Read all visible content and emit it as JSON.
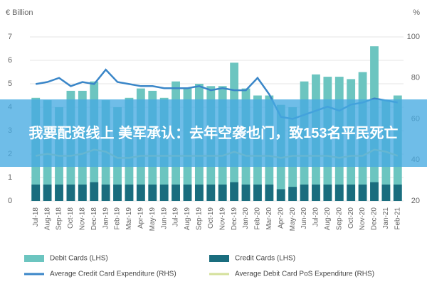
{
  "chart_data": {
    "type": "bar_line",
    "ylabel": "€ Billion",
    "y2label": "%",
    "categories": [
      "Jul-18",
      "Aug-18",
      "Sep-18",
      "Oct-18",
      "Nov-18",
      "Dec-18",
      "Jan-19",
      "Feb-19",
      "Mar-19",
      "Apr-19",
      "May-19",
      "Jun-19",
      "Jul-19",
      "Aug-19",
      "Sep-19",
      "Oct-19",
      "Nov-19",
      "Dec-19",
      "Jan-20",
      "Feb-20",
      "Mar-20",
      "Apr-20",
      "May-20",
      "Jun-20",
      "Jul-20",
      "Aug-20",
      "Sep-20",
      "Oct-20",
      "Nov-20",
      "Dec-20",
      "Jan-21",
      "Feb-21"
    ],
    "series": [
      {
        "name": "Debit Cards (LHS)",
        "kind": "bar",
        "color": "#6cc5c0",
        "values": [
          4.4,
          4.3,
          4.0,
          4.7,
          4.7,
          5.1,
          4.3,
          4.0,
          4.4,
          4.8,
          4.7,
          4.4,
          5.1,
          4.8,
          5.0,
          4.9,
          4.9,
          5.9,
          4.8,
          4.5,
          4.5,
          4.1,
          4.0,
          5.1,
          5.4,
          5.3,
          5.3,
          5.2,
          5.5,
          6.6,
          4.3,
          4.5
        ]
      },
      {
        "name": "Credit Cards (LHS)",
        "kind": "bar",
        "color": "#1a6d7e",
        "values": [
          0.7,
          0.7,
          0.7,
          0.7,
          0.7,
          0.8,
          0.7,
          0.7,
          0.7,
          0.7,
          0.7,
          0.7,
          0.7,
          0.7,
          0.7,
          0.7,
          0.7,
          0.8,
          0.7,
          0.7,
          0.7,
          0.5,
          0.6,
          0.7,
          0.7,
          0.7,
          0.7,
          0.7,
          0.7,
          0.8,
          0.7,
          0.7
        ]
      },
      {
        "name": "Average Credit Card Expenditure (RHS)",
        "kind": "line",
        "axis": "y2",
        "color": "#3a86c8",
        "values": [
          77,
          78,
          80,
          76,
          78,
          77,
          84,
          78,
          77,
          76,
          76,
          75,
          75,
          75,
          76,
          74,
          75,
          74,
          74,
          80,
          72,
          61,
          60,
          62,
          64,
          66,
          64,
          67,
          68,
          70,
          69,
          68
        ]
      },
      {
        "name": "Average Debit Card PoS Expenditure (RHS)",
        "kind": "line",
        "axis": "y2",
        "color": "#d4e09b",
        "values": [
          42,
          43,
          42,
          42,
          43,
          45,
          44,
          41,
          41,
          42,
          42,
          42,
          42,
          42,
          42,
          42,
          42,
          44,
          42,
          42,
          42,
          41,
          42,
          42,
          42,
          42,
          41,
          42,
          42,
          45,
          44,
          42
        ]
      }
    ],
    "ylim": [
      0,
      7
    ],
    "yticks": [
      0,
      1,
      2,
      3,
      4,
      5,
      6,
      7
    ],
    "y2lim": [
      20,
      100
    ],
    "y2ticks": [
      20,
      40,
      60,
      80,
      100
    ]
  },
  "banner": {
    "text": "我要配资线上 美军承认：去年空袭也门，致153名平民死亡"
  }
}
